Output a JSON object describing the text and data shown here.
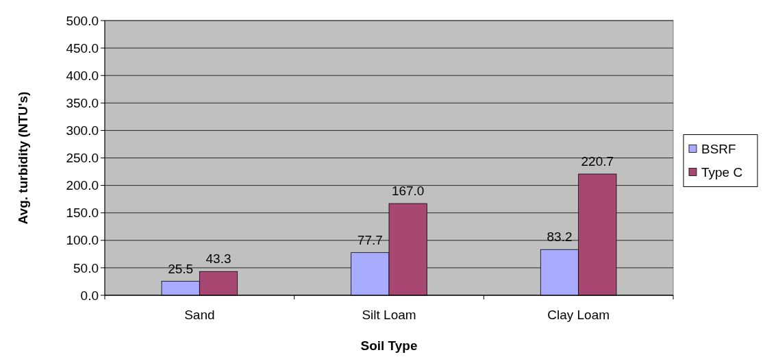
{
  "chart_data": {
    "type": "bar",
    "xlabel": "Soil Type",
    "ylabel": "Avg. turbidity (NTU's)",
    "categories": [
      "Sand",
      "Silt Loam",
      "Clay Loam"
    ],
    "series": [
      {
        "name": "BSRF",
        "color": "#a9abff",
        "values": [
          25.5,
          77.7,
          83.2
        ],
        "value_labels": [
          "25.5",
          "77.7",
          "83.2"
        ]
      },
      {
        "name": "Type C",
        "color": "#a84872",
        "values": [
          43.3,
          167.0,
          220.7
        ],
        "value_labels": [
          "43.3",
          "167.0",
          "220.7"
        ]
      }
    ],
    "ylim": [
      0,
      500
    ],
    "yticks": [
      {
        "value": 0,
        "label": "0.0"
      },
      {
        "value": 50,
        "label": "50.0"
      },
      {
        "value": 100,
        "label": "100.0"
      },
      {
        "value": 150,
        "label": "150.0"
      },
      {
        "value": 200,
        "label": "200.0"
      },
      {
        "value": 250,
        "label": "250.0"
      },
      {
        "value": 300,
        "label": "300.0"
      },
      {
        "value": 350,
        "label": "350.0"
      },
      {
        "value": 400,
        "label": "400.0"
      },
      {
        "value": 450,
        "label": "450.0"
      },
      {
        "value": 500,
        "label": "500.0"
      }
    ],
    "grid": "y",
    "legend": "right"
  }
}
